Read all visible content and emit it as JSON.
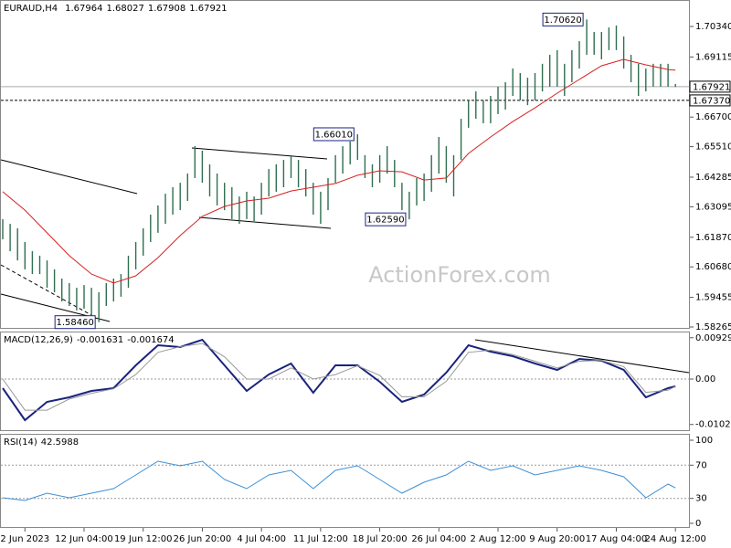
{
  "chart_data": [
    {
      "type": "ohlc",
      "title": "EURAUD,H4",
      "quote": [
        1.67964,
        1.68027,
        1.67908,
        1.67921
      ],
      "watermark": "ActionForex.com",
      "categories": [
        null,
        null,
        null,
        "2 Jun 2023",
        null,
        null,
        null,
        null,
        null,
        null,
        null,
        "12 Jun 04:00",
        null,
        null,
        null,
        null,
        null,
        null,
        null,
        "19 Jun 12:00",
        null,
        null,
        null,
        null,
        null,
        null,
        null,
        "26 Jun 20:00",
        null,
        null,
        null,
        null,
        null,
        null,
        null,
        "4 Jul 04:00",
        null,
        null,
        null,
        null,
        null,
        null,
        null,
        "11 Jul 12:00",
        null,
        null,
        null,
        null,
        null,
        null,
        null,
        "18 Jul 20:00",
        null,
        null,
        null,
        null,
        null,
        null,
        null,
        "26 Jul 04:00",
        null,
        null,
        null,
        null,
        null,
        null,
        null,
        "2 Aug 12:00",
        null,
        null,
        null,
        null,
        null,
        null,
        null,
        "9 Aug 20:00",
        null,
        null,
        null,
        null,
        null,
        null,
        null,
        "17 Aug 04:00",
        null,
        null,
        null,
        null,
        null,
        null,
        null,
        "24 Aug 12:00"
      ],
      "high": [
        1.626,
        1.6241,
        1.6223,
        1.6168,
        1.6131,
        1.6113,
        1.6094,
        1.6058,
        1.6021,
        1.6003,
        1.5984,
        1.5995,
        1.5984,
        1.5966,
        1.6003,
        1.6021,
        1.6039,
        1.6113,
        1.6168,
        1.6223,
        1.6278,
        1.6315,
        1.6362,
        1.6388,
        1.6406,
        1.6443,
        1.6553,
        1.6535,
        1.648,
        1.6443,
        1.6406,
        1.6388,
        1.6351,
        1.637,
        1.6351,
        1.6406,
        1.6461,
        1.648,
        1.6498,
        1.6517,
        1.6498,
        1.6461,
        1.6406,
        1.637,
        1.6425,
        1.6517,
        1.6553,
        1.6572,
        1.6601,
        1.6517,
        1.648,
        1.6517,
        1.6553,
        1.6498,
        1.6406,
        1.637,
        1.6425,
        1.6443,
        1.6517,
        1.659,
        1.6553,
        1.6517,
        1.6663,
        1.6737,
        1.6773,
        1.6737,
        1.6755,
        1.6792,
        1.681,
        1.6865,
        1.6847,
        1.6828,
        1.6847,
        1.6884,
        1.692,
        1.6939,
        1.6884,
        1.6939,
        1.6975,
        1.7062,
        1.7012,
        1.7012,
        1.703,
        1.7038,
        1.6994,
        1.692,
        1.6884,
        1.6865,
        1.6884,
        1.6884,
        1.6884,
        1.68027
      ],
      "low": [
        1.6179,
        1.6131,
        1.6094,
        1.6058,
        1.6039,
        1.6039,
        1.5984,
        1.5966,
        1.5929,
        1.5911,
        1.5893,
        1.59,
        1.5874,
        1.5846,
        1.5911,
        1.5929,
        1.5948,
        1.5984,
        1.6058,
        1.6113,
        1.6168,
        1.6205,
        1.6241,
        1.6278,
        1.6296,
        1.6333,
        1.6425,
        1.6406,
        1.6351,
        1.6315,
        1.6296,
        1.626,
        1.6241,
        1.626,
        1.6252,
        1.6278,
        1.6351,
        1.637,
        1.6388,
        1.6425,
        1.6388,
        1.6351,
        1.6278,
        1.6241,
        1.6296,
        1.6406,
        1.6443,
        1.648,
        1.6498,
        1.6425,
        1.6388,
        1.6406,
        1.6443,
        1.6388,
        1.6296,
        1.6259,
        1.6315,
        1.6333,
        1.637,
        1.6443,
        1.6406,
        1.6351,
        1.6498,
        1.6627,
        1.6663,
        1.6645,
        1.6645,
        1.6682,
        1.67,
        1.6755,
        1.6737,
        1.6718,
        1.6737,
        1.6773,
        1.6792,
        1.6792,
        1.6755,
        1.681,
        1.6865,
        1.692,
        1.692,
        1.6902,
        1.6939,
        1.6939,
        1.6865,
        1.681,
        1.6755,
        1.6773,
        1.6792,
        1.6792,
        1.6792,
        1.67908
      ],
      "color": "#2f6f4f",
      "series": [
        {
          "color": "#d62020",
          "x": [
            0,
            3,
            6,
            9,
            12,
            15,
            18,
            21,
            24,
            27,
            30,
            33,
            36,
            39,
            42,
            45,
            48,
            51,
            54,
            57,
            60,
            63,
            66,
            69,
            72,
            75,
            78,
            81,
            84,
            87,
            90,
            91
          ],
          "values": [
            1.637,
            1.6296,
            1.6205,
            1.6113,
            1.6039,
            1.6003,
            1.6032,
            1.6105,
            1.6194,
            1.6271,
            1.6311,
            1.6333,
            1.6344,
            1.6373,
            1.6388,
            1.6403,
            1.6436,
            1.6454,
            1.645,
            1.6417,
            1.6425,
            1.6524,
            1.659,
            1.6652,
            1.6707,
            1.6766,
            1.6821,
            1.6876,
            1.6902,
            1.688,
            1.6861,
            1.6858
          ]
        }
      ],
      "ylim": [
        1.58192,
        1.71404
      ],
      "yticks": [
        {
          "value": 1.7034,
          "label": "1.70340"
        },
        1.69115,
        {
          "value": 1.667,
          "label": "1.66700"
        },
        {
          "value": 1.6551,
          "label": "1.65510"
        },
        1.64285,
        1.63095,
        {
          "value": 1.6187,
          "label": "1.61870"
        },
        {
          "value": 1.6068,
          "label": "1.60680"
        },
        1.59455,
        1.58265
      ],
      "grid": false,
      "price_lines": [
        {
          "value": 1.67921,
          "style": "solid"
        },
        {
          "value": 1.6737,
          "label": "1.67370",
          "style": "dotted"
        }
      ],
      "annotations": [
        {
          "value": 1.7062,
          "label": "1.70620"
        },
        {
          "value": 1.6601,
          "label": "1.66010"
        },
        {
          "value": 1.6259,
          "label": "1.62590"
        },
        {
          "value": 1.5846,
          "label": "1.58460"
        }
      ]
    },
    {
      "type": "line",
      "x": [
        0,
        3,
        6,
        9,
        12,
        15,
        18,
        21,
        24,
        27,
        30,
        33,
        36,
        39,
        42,
        45,
        48,
        51,
        54,
        57,
        60,
        63,
        66,
        69,
        72,
        75,
        78,
        81,
        84,
        87,
        90,
        91
      ],
      "series": [
        {
          "name": "MACD(12,26,9)",
          "color": "#1a237e",
          "width": 2,
          "values": [
            -0.00205,
            -0.00924,
            -0.00513,
            -0.00411,
            -0.00267,
            -0.00205,
            0.00308,
            0.0076,
            0.00719,
            0.00883,
            0.00308,
            -0.00267,
            0.00103,
            0.00349,
            -0.00308,
            0.00308,
            0.00308,
            -0.00062,
            -0.00513,
            -0.00349,
            0.00144,
            0.0076,
            0.00616,
            0.00513,
            0.00349,
            0.00205,
            0.00452,
            0.00411,
            0.00205,
            -0.00411,
            -0.00205,
            -0.001631
          ]
        },
        {
          "color": "#9a9a9a",
          "width": 1,
          "values": [
            0,
            -0.007,
            -0.007,
            -0.0045,
            -0.0032,
            -0.0022,
            0.001,
            0.006,
            0.0073,
            0.008,
            0.005,
            0,
            0,
            0.0025,
            0,
            0.001,
            0.003,
            0.0008,
            -0.004,
            -0.004,
            -0.0005,
            0.006,
            0.0065,
            0.0055,
            0.004,
            0.0025,
            0.004,
            0.0042,
            0.0028,
            -0.003,
            -0.0025,
            -0.001674
          ]
        }
      ],
      "ylim": [
        -0.0117,
        0.01068
      ],
      "yticks": [
        0.009291,
        {
          "value": 0,
          "label": "0.00"
        },
        -0.010211
      ],
      "grid": true
    },
    {
      "type": "line",
      "x": [
        0,
        3,
        6,
        9,
        12,
        15,
        18,
        21,
        24,
        27,
        30,
        33,
        36,
        39,
        42,
        45,
        48,
        51,
        54,
        57,
        60,
        63,
        66,
        69,
        72,
        75,
        78,
        81,
        84,
        87,
        90,
        91
      ],
      "series": [
        {
          "name": "RSI(14)",
          "color": "#3d8fd6",
          "width": 1,
          "values": [
            30.8,
            27.5,
            36.3,
            30.8,
            36.3,
            41.8,
            58.2,
            74.7,
            69.2,
            74.7,
            52.7,
            41.8,
            58.2,
            63.7,
            41.8,
            63.7,
            69.2,
            52.7,
            36.3,
            49.5,
            58.2,
            74.7,
            63.7,
            69.2,
            58.2,
            63.7,
            69.2,
            63.7,
            56.0,
            30.8,
            47.3,
            42.5988
          ]
        }
      ],
      "ylim": [
        -5.5,
        107.7
      ],
      "yticks": [
        100,
        70,
        30,
        0
      ],
      "grid": true
    }
  ]
}
